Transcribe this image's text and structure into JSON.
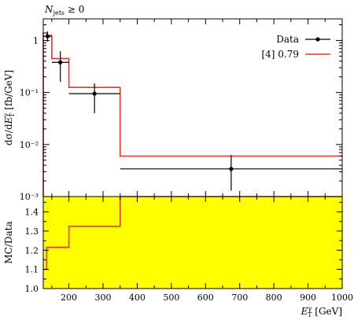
{
  "colors": {
    "data": "#000000",
    "mc": "#e8372b",
    "band": "#ffff00"
  },
  "chart_data": [
    {
      "type": "scatter",
      "panel": "main",
      "annotation": "N_jets ≥ 0",
      "xlabel": "E_T^γ [GeV]",
      "ylabel": "dσ/dE_T^γ [fb/GeV]",
      "xlim": [
        125,
        1000
      ],
      "ylim": [
        0.001,
        2.6
      ],
      "yscale": "log",
      "yticks": [
        {
          "value": 0.001,
          "label": "10⁻³"
        },
        {
          "value": 0.01,
          "label": "10⁻²"
        },
        {
          "value": 0.1,
          "label": "10⁻¹"
        },
        {
          "value": 1,
          "label": "1"
        }
      ],
      "legend": {
        "position": "top-right",
        "entries": [
          {
            "label": "Data",
            "style": "marker"
          },
          {
            "label": "[4] 0.79",
            "style": "line"
          }
        ]
      },
      "data_points": [
        {
          "x": 137.5,
          "xlow": 125,
          "xhigh": 150,
          "y": 1.2,
          "ylow": 0.95,
          "yhigh": 1.5
        },
        {
          "x": 175,
          "xlow": 150,
          "xhigh": 200,
          "y": 0.38,
          "ylow": 0.16,
          "yhigh": 0.62
        },
        {
          "x": 275,
          "xlow": 200,
          "xhigh": 350,
          "y": 0.095,
          "ylow": 0.04,
          "yhigh": 0.15
        },
        {
          "x": 675,
          "xlow": 350,
          "xhigh": 1000,
          "y": 0.0034,
          "ylow": 0.0013,
          "yhigh": 0.0063
        }
      ],
      "mc_histogram": {
        "name": "[4] 0.79",
        "bins": [
          {
            "xlow": 125,
            "xhigh": 135,
            "y": 1.4
          },
          {
            "xlow": 135,
            "xhigh": 150,
            "y": 1.25
          },
          {
            "xlow": 150,
            "xhigh": 200,
            "y": 0.45
          },
          {
            "xlow": 200,
            "xhigh": 350,
            "y": 0.125
          },
          {
            "xlow": 350,
            "xhigh": 1000,
            "y": 0.006
          }
        ]
      }
    },
    {
      "type": "area",
      "panel": "ratio",
      "xlabel": "E_T^γ [GeV]",
      "ylabel": "MC/Data",
      "xlim": [
        125,
        1000
      ],
      "ylim": [
        1.0,
        1.48
      ],
      "xticks": [
        200,
        300,
        400,
        500,
        600,
        700,
        800,
        900,
        1000
      ],
      "yticks": [
        1.0,
        1.1,
        1.2,
        1.3,
        1.4
      ],
      "band": {
        "ylow": 1.0,
        "yhigh": 1.48
      },
      "ratio_histogram": {
        "bins": [
          {
            "xlow": 125,
            "xhigh": 135,
            "y": 1.1
          },
          {
            "xlow": 135,
            "xhigh": 150,
            "y": 1.215
          },
          {
            "xlow": 150,
            "xhigh": 200,
            "y": 1.215
          },
          {
            "xlow": 200,
            "xhigh": 350,
            "y": 1.325
          },
          {
            "xlow": 350,
            "xhigh": 1000,
            "y": 1.48
          }
        ]
      }
    }
  ]
}
